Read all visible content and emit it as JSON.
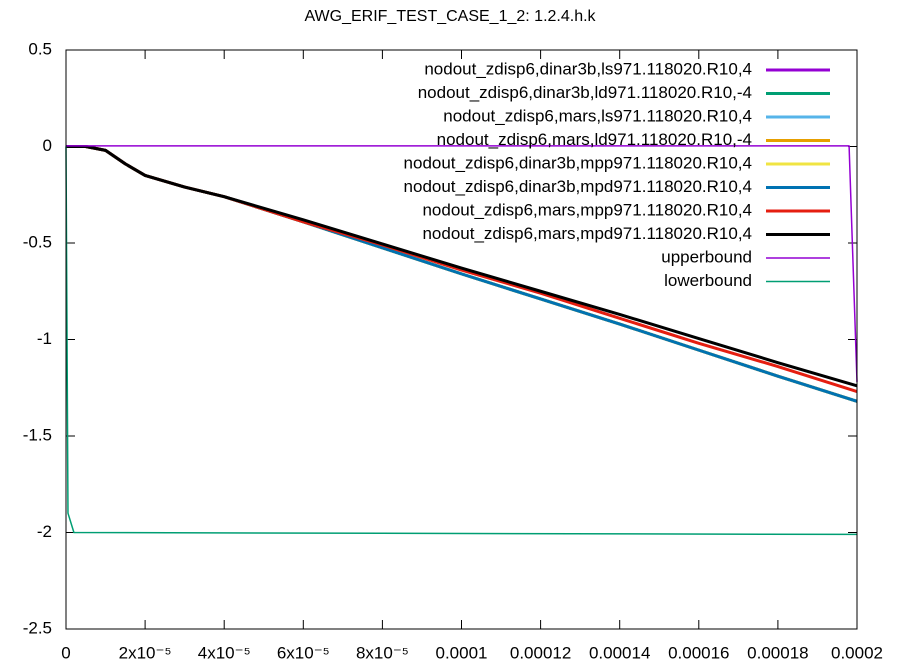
{
  "chart_data": {
    "type": "line",
    "title": "AWG_ERIF_TEST_CASE_1_2: 1.2.4.h.k",
    "xlim": [
      0,
      0.0002
    ],
    "ylim": [
      -2.5,
      0.5
    ],
    "xticks": [
      0,
      {
        "value": 2e-05,
        "label": "2x10⁻⁵"
      },
      {
        "value": 4e-05,
        "label": "4x10⁻⁵"
      },
      {
        "value": 6e-05,
        "label": "6x10⁻⁵"
      },
      {
        "value": 8e-05,
        "label": "8x10⁻⁵"
      },
      0.0001,
      0.00012,
      0.00014,
      0.00016,
      0.00018,
      0.0002
    ],
    "yticks": [
      0.5,
      0,
      -0.5,
      -1,
      -1.5,
      -2,
      -2.5
    ],
    "legend": "top right",
    "series": [
      {
        "name": "nodout_zdisp6,dinar3b,ls971.118020.R10,4",
        "color": "#9400d3",
        "linewidth": 3,
        "x": [
          0,
          5e-06,
          1e-05,
          1.5e-05,
          2e-05,
          3e-05,
          4e-05,
          6e-05,
          8e-05,
          0.0001,
          0.00012,
          0.00014,
          0.00016,
          0.00018,
          0.0002
        ],
        "values": [
          0,
          0,
          -0.02,
          -0.09,
          -0.15,
          -0.21,
          -0.26,
          -0.39,
          -0.525,
          -0.66,
          -0.79,
          -0.92,
          -1.055,
          -1.19,
          -1.32
        ]
      },
      {
        "name": "nodout_zdisp6,dinar3b,ld971.118020.R10,-4",
        "color": "#009e73",
        "linewidth": 3,
        "x": [
          0,
          5e-06,
          1e-05,
          1.5e-05,
          2e-05,
          3e-05,
          4e-05,
          6e-05,
          8e-05,
          0.0001,
          0.00012,
          0.00014,
          0.00016,
          0.00018,
          0.0002
        ],
        "values": [
          0,
          0,
          -0.02,
          -0.09,
          -0.15,
          -0.21,
          -0.26,
          -0.39,
          -0.525,
          -0.66,
          -0.79,
          -0.92,
          -1.055,
          -1.19,
          -1.32
        ]
      },
      {
        "name": "nodout_zdisp6,mars,ls971.118020.R10,4",
        "color": "#56b4e9",
        "linewidth": 3,
        "x": [
          0,
          5e-06,
          1e-05,
          1.5e-05,
          2e-05,
          3e-05,
          4e-05,
          6e-05,
          8e-05,
          0.0001,
          0.00012,
          0.00014,
          0.00016,
          0.00018,
          0.0002
        ],
        "values": [
          0,
          0,
          -0.02,
          -0.09,
          -0.15,
          -0.21,
          -0.26,
          -0.39,
          -0.525,
          -0.66,
          -0.79,
          -0.92,
          -1.055,
          -1.19,
          -1.32
        ]
      },
      {
        "name": "nodout_zdisp6,mars,ld971.118020.R10,-4",
        "color": "#e69f00",
        "linewidth": 3,
        "x": [
          0,
          5e-06,
          1e-05,
          1.5e-05,
          2e-05,
          3e-05,
          4e-05,
          6e-05,
          8e-05,
          0.0001,
          0.00012,
          0.00014,
          0.00016,
          0.00018,
          0.0002
        ],
        "values": [
          0,
          0,
          -0.02,
          -0.09,
          -0.15,
          -0.21,
          -0.26,
          -0.39,
          -0.525,
          -0.66,
          -0.79,
          -0.92,
          -1.055,
          -1.19,
          -1.32
        ]
      },
      {
        "name": "nodout_zdisp6,dinar3b,mpp971.118020.R10,4",
        "color": "#f0e442",
        "linewidth": 3,
        "x": [
          0,
          5e-06,
          1e-05,
          1.5e-05,
          2e-05,
          3e-05,
          4e-05,
          6e-05,
          8e-05,
          0.0001,
          0.00012,
          0.00014,
          0.00016,
          0.00018,
          0.0002
        ],
        "values": [
          0,
          0,
          -0.02,
          -0.09,
          -0.15,
          -0.21,
          -0.26,
          -0.39,
          -0.525,
          -0.66,
          -0.79,
          -0.92,
          -1.055,
          -1.19,
          -1.32
        ]
      },
      {
        "name": "nodout_zdisp6,dinar3b,mpd971.118020.R10,4",
        "color": "#0072b2",
        "linewidth": 3,
        "x": [
          0,
          5e-06,
          1e-05,
          1.5e-05,
          2e-05,
          3e-05,
          4e-05,
          6e-05,
          8e-05,
          0.0001,
          0.00012,
          0.00014,
          0.00016,
          0.00018,
          0.0002
        ],
        "values": [
          0,
          0,
          -0.02,
          -0.09,
          -0.15,
          -0.21,
          -0.26,
          -0.39,
          -0.525,
          -0.66,
          -0.79,
          -0.92,
          -1.055,
          -1.19,
          -1.32
        ]
      },
      {
        "name": "nodout_zdisp6,mars,mpp971.118020.R10,4",
        "color": "#e51e10",
        "linewidth": 3,
        "x": [
          0,
          5e-06,
          1e-05,
          1.5e-05,
          2e-05,
          3e-05,
          4e-05,
          6e-05,
          8e-05,
          0.0001,
          0.00012,
          0.00014,
          0.00016,
          0.00018,
          0.0002
        ],
        "values": [
          0,
          0,
          -0.02,
          -0.09,
          -0.15,
          -0.21,
          -0.26,
          -0.39,
          -0.51,
          -0.64,
          -0.76,
          -0.89,
          -1.02,
          -1.14,
          -1.27
        ]
      },
      {
        "name": "nodout_zdisp6,mars,mpd971.118020.R10,4",
        "color": "#000000",
        "linewidth": 3,
        "x": [
          0,
          5e-06,
          1e-05,
          1.5e-05,
          2e-05,
          3e-05,
          4e-05,
          6e-05,
          8e-05,
          0.0001,
          0.00012,
          0.00014,
          0.00016,
          0.00018,
          0.0002
        ],
        "values": [
          0,
          0,
          -0.02,
          -0.09,
          -0.15,
          -0.21,
          -0.26,
          -0.38,
          -0.505,
          -0.63,
          -0.75,
          -0.87,
          -0.995,
          -1.12,
          -1.24
        ]
      },
      {
        "name": "upperbound",
        "color": "#9400d3",
        "linewidth": 1.5,
        "x": [
          0,
          0.000198,
          0.0002
        ],
        "values": [
          0.003,
          0.003,
          -1.22
        ]
      },
      {
        "name": "lowerbound",
        "color": "#009e73",
        "linewidth": 1.5,
        "x": [
          0,
          5e-07,
          2e-06,
          0.0002
        ],
        "values": [
          0,
          -1.9,
          -2.0,
          -2.01
        ]
      }
    ]
  }
}
